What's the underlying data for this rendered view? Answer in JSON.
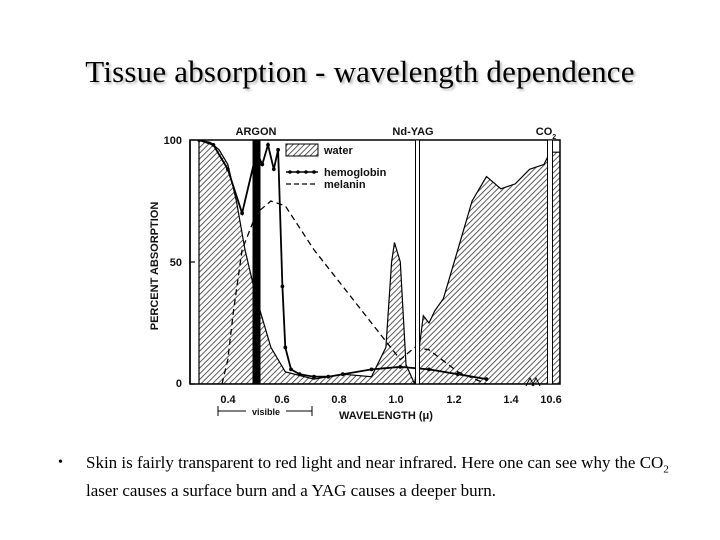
{
  "slide": {
    "title": "Tissue absorption - wavelength dependence",
    "bullet_symbol": "•",
    "bullet_part1": "Skin is fairly transparent to red light and near infrared.  Here one can see why the CO",
    "bullet_sub": "2",
    "bullet_part2": " laser causes a surface burn and a YAG causes a deeper burn."
  },
  "chart_data": {
    "type": "line",
    "title": "",
    "xlabel": "WAVELENGTH (μ)",
    "ylabel": "PERCENT ABSORPTION",
    "ylim": [
      0,
      100
    ],
    "xlim": [
      0.3,
      10.6
    ],
    "x_ticks": [
      "0.4",
      "0.6",
      "0.8",
      "1.0",
      "1.2",
      "1.4",
      "10.6"
    ],
    "y_ticks": [
      "0",
      "50",
      "100"
    ],
    "visible_label": "visible",
    "laser_lines": [
      {
        "name": "ARGON",
        "x": 0.5
      },
      {
        "name": "Nd-YAG",
        "x": 1.06
      },
      {
        "name": "CO",
        "name_sub": "2",
        "x": 10.6
      }
    ],
    "legend_position": "top-right",
    "series": [
      {
        "name": "water",
        "style": "hatched-area",
        "x": [
          0.3,
          0.34,
          0.37,
          0.4,
          0.43,
          0.46,
          0.5,
          0.55,
          0.6,
          0.7,
          0.8,
          0.9,
          0.95,
          0.97,
          0.98,
          1.0,
          1.02,
          1.05,
          1.08,
          1.1,
          1.12,
          1.15,
          1.2,
          1.25,
          1.3,
          1.35,
          1.4,
          1.45,
          1.5,
          10.6
        ],
        "values": [
          100,
          99,
          96,
          90,
          75,
          55,
          35,
          15,
          5,
          2,
          4,
          3,
          15,
          50,
          58,
          50,
          8,
          0,
          28,
          25,
          30,
          35,
          55,
          75,
          85,
          80,
          82,
          88,
          90,
          95
        ]
      },
      {
        "name": "hemoglobin",
        "style": "dotted-line",
        "x": [
          0.3,
          0.35,
          0.4,
          0.45,
          0.5,
          0.52,
          0.54,
          0.56,
          0.575,
          0.59,
          0.6,
          0.62,
          0.65,
          0.7,
          0.75,
          0.8,
          0.9,
          1.0,
          1.1,
          1.2,
          1.3
        ],
        "values": [
          100,
          98,
          88,
          70,
          95,
          90,
          98,
          88,
          96,
          40,
          15,
          6,
          4,
          3,
          3,
          4,
          6,
          7,
          6,
          4,
          2
        ]
      },
      {
        "name": "melanin",
        "style": "dashed-line",
        "x": [
          0.38,
          0.4,
          0.42,
          0.45,
          0.5,
          0.55,
          0.6,
          0.7,
          0.8,
          0.9,
          1.0,
          1.05,
          1.1,
          1.2,
          1.3
        ],
        "values": [
          0,
          10,
          30,
          55,
          70,
          75,
          73,
          55,
          40,
          25,
          10,
          15,
          14,
          5,
          0
        ]
      }
    ]
  }
}
